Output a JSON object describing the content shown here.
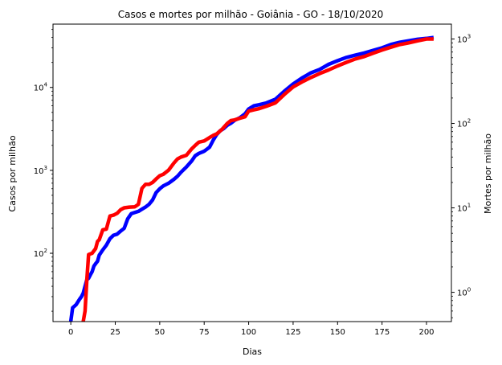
{
  "chart_data": {
    "type": "line",
    "title": "Casos e mortes por milhão - Goiânia - GO - 18/10/2020",
    "xlabel": "Dias",
    "xlim": [
      -10,
      214
    ],
    "xticks": [
      0,
      25,
      50,
      75,
      100,
      125,
      150,
      175,
      200
    ],
    "y_left": {
      "label": "Casos por milhão",
      "color": "#0000ff",
      "scale": "log",
      "lim": [
        15,
        58000
      ],
      "ticks": [
        {
          "value": 100,
          "mantissa": "10",
          "exp": "2"
        },
        {
          "value": 1000,
          "mantissa": "10",
          "exp": "3"
        },
        {
          "value": 10000,
          "mantissa": "10",
          "exp": "4"
        }
      ]
    },
    "y_right": {
      "label": "Mortes por milhão",
      "color": "#ff0000",
      "scale": "log",
      "lim": [
        0.45,
        1500
      ],
      "ticks": [
        {
          "value": 1,
          "mantissa": "10",
          "exp": "0"
        },
        {
          "value": 10,
          "mantissa": "10",
          "exp": "1"
        },
        {
          "value": 100,
          "mantissa": "10",
          "exp": "2"
        },
        {
          "value": 1000,
          "mantissa": "10",
          "exp": "3"
        }
      ]
    },
    "series": [
      {
        "axis": "left",
        "color": "#0000ff",
        "x": [
          0,
          1,
          2,
          3,
          4,
          5,
          6,
          7,
          8,
          9,
          10,
          11,
          12,
          13,
          14,
          15,
          16,
          18,
          20,
          22,
          24,
          26,
          28,
          30,
          32,
          34,
          36,
          38,
          40,
          42,
          44,
          46,
          48,
          50,
          52,
          55,
          58,
          60,
          62,
          65,
          68,
          70,
          72,
          75,
          78,
          80,
          82,
          84,
          86,
          88,
          90,
          92,
          95,
          98,
          100,
          103,
          106,
          110,
          115,
          120,
          125,
          130,
          135,
          140,
          145,
          150,
          155,
          160,
          165,
          170,
          175,
          180,
          185,
          190,
          195,
          200,
          204
        ],
        "y": [
          15,
          22,
          23,
          24,
          26,
          28,
          30,
          33,
          40,
          48,
          50,
          55,
          60,
          70,
          75,
          80,
          95,
          110,
          125,
          150,
          165,
          170,
          185,
          200,
          260,
          300,
          310,
          320,
          340,
          360,
          390,
          440,
          540,
          600,
          650,
          700,
          780,
          850,
          950,
          1100,
          1300,
          1500,
          1600,
          1700,
          1900,
          2300,
          2700,
          3000,
          3200,
          3500,
          3700,
          4000,
          4300,
          4800,
          5500,
          6000,
          6200,
          6500,
          7200,
          9000,
          11000,
          13000,
          15000,
          16500,
          19000,
          21000,
          23000,
          24500,
          26000,
          28000,
          30000,
          33000,
          35000,
          36500,
          38000,
          39000,
          40000
        ]
      },
      {
        "axis": "right",
        "color": "#ff0000",
        "x": [
          7,
          8,
          9,
          10,
          12,
          14,
          15,
          16,
          18,
          20,
          22,
          24,
          26,
          28,
          30,
          33,
          36,
          38,
          40,
          42,
          44,
          46,
          48,
          50,
          52,
          55,
          58,
          60,
          62,
          65,
          68,
          70,
          72,
          75,
          78,
          80,
          82,
          85,
          88,
          90,
          92,
          95,
          98,
          100,
          103,
          106,
          110,
          115,
          120,
          125,
          130,
          135,
          140,
          145,
          150,
          155,
          160,
          165,
          170,
          175,
          180,
          185,
          190,
          195,
          200,
          204
        ],
        "y": [
          0.45,
          0.6,
          1.4,
          2.8,
          2.9,
          3.3,
          4.0,
          4.2,
          5.5,
          5.6,
          8.0,
          8.2,
          8.6,
          9.5,
          10.0,
          10.2,
          10.3,
          11.0,
          17,
          19,
          19,
          20,
          22,
          24,
          25,
          28,
          34,
          38,
          40,
          42,
          50,
          55,
          60,
          62,
          68,
          72,
          75,
          85,
          100,
          108,
          110,
          115,
          120,
          140,
          145,
          150,
          160,
          175,
          220,
          270,
          310,
          350,
          390,
          430,
          480,
          530,
          580,
          620,
          680,
          740,
          800,
          860,
          900,
          950,
          1000,
          1000
        ]
      }
    ]
  }
}
